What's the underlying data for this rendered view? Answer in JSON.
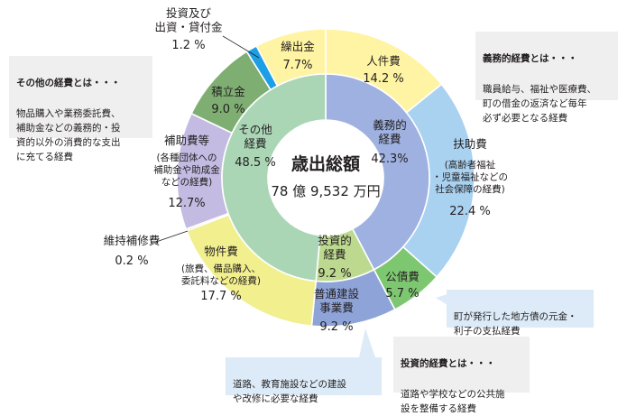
{
  "chart_data": {
    "type": "pie",
    "subtype": "nested-donut",
    "center_title": "歳出総額",
    "center_amount": "78 億 9,532 万円",
    "outer_ring": [
      {
        "label": "人件費",
        "value": 14.2,
        "value_text": "14.2 %",
        "color": "#fff4a3"
      },
      {
        "label": "扶助費",
        "sublabel": "(高齢者福祉\n・児童福祉などの\n社会保障の経費)",
        "value": 22.4,
        "value_text": "22.4 %",
        "color": "#a9d1f0"
      },
      {
        "label": "公債費",
        "value": 5.7,
        "value_text": "5.7 %",
        "color": "#7ec771"
      },
      {
        "label": "普通建設\n事業費",
        "value": 9.2,
        "value_text": "9.2 %",
        "color": "#8ea3d8"
      },
      {
        "label": "物件費",
        "sublabel": "(旅費、備品購入、\n委託料などの経費)",
        "value": 17.7,
        "value_text": "17.7 %",
        "color": "#f2ef8e"
      },
      {
        "label": "維持補修費",
        "value": 0.2,
        "value_text": "0.2 %",
        "color": "#d9d9d9"
      },
      {
        "label": "補助費等",
        "sublabel": "(各種団体への\n補助金や助成金\nなどの経費)",
        "value": 12.7,
        "value_text": "12.7%",
        "color": "#c3bbe2"
      },
      {
        "label": "積立金",
        "value": 9.0,
        "value_text": "9.0 %",
        "color": "#7fae72"
      },
      {
        "label": "投資及び\n出資・貸付金",
        "value": 1.2,
        "value_text": "1.2 %",
        "color": "#1d9fe6"
      },
      {
        "label": "繰出金",
        "value": 7.7,
        "value_text": "7.7%",
        "color": "#fff4a3"
      }
    ],
    "inner_ring": [
      {
        "label": "義務的\n経費",
        "value": 42.3,
        "value_text": "42.3%",
        "color": "#9eb1e0"
      },
      {
        "label": "投資的\n経費",
        "value": 9.2,
        "value_text": "9.2 %",
        "color": "#bcd98f"
      },
      {
        "label": "その他\n経費",
        "value": 48.5,
        "value_text": "48.5 %",
        "color": "#aad6b6"
      }
    ]
  },
  "notes": {
    "gimu": {
      "title": "義務的経費とは・・・",
      "body": "職員給与、福祉や医療費、\n町の借金の返済など毎年\n必ず必要となる経費"
    },
    "sonota": {
      "title": "その他の経費とは・・・",
      "body": "物品購入や業務委託費、\n補助金などの義務的・投\n資的以外の消費的な支出\nに充てる経費"
    },
    "kosai": {
      "body": "町が発行した地方債の元金・\n利子の支払経費"
    },
    "toushi": {
      "title": "投資的経費とは・・・",
      "body": "道路や学校などの公共施\n設を整備する経費"
    },
    "futsu": {
      "body": "道路、教育施設などの建設\nや改修に必要な経費"
    }
  }
}
